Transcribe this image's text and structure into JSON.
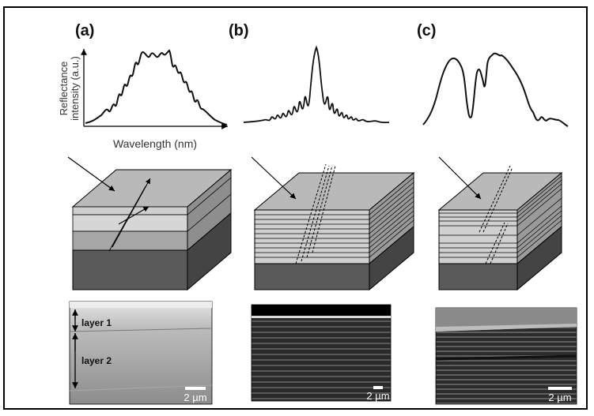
{
  "panels": [
    {
      "id": "a",
      "label": "(a)",
      "sem": {
        "layers": [
          "layer 1",
          "layer 2"
        ],
        "scale_label": "2 µm"
      }
    },
    {
      "id": "b",
      "label": "(b)",
      "sem": {
        "scale_label": "2 µm"
      }
    },
    {
      "id": "c",
      "label": "(c)",
      "sem": {
        "scale_label": "2 µm"
      }
    }
  ],
  "spectrum_axes": {
    "ylabel_line1": "Reflectance",
    "ylabel_line2": "intensity (a.u.)",
    "xlabel": "Wavelength (nm)"
  },
  "colors": {
    "block_top": "#b9b9b9",
    "block_side": "#8e8e8e",
    "substrate_front": "#5a5a5a",
    "substrate_side": "#444444",
    "layer_light": "#d2d2d2",
    "layer_mid": "#a9a9a9"
  }
}
